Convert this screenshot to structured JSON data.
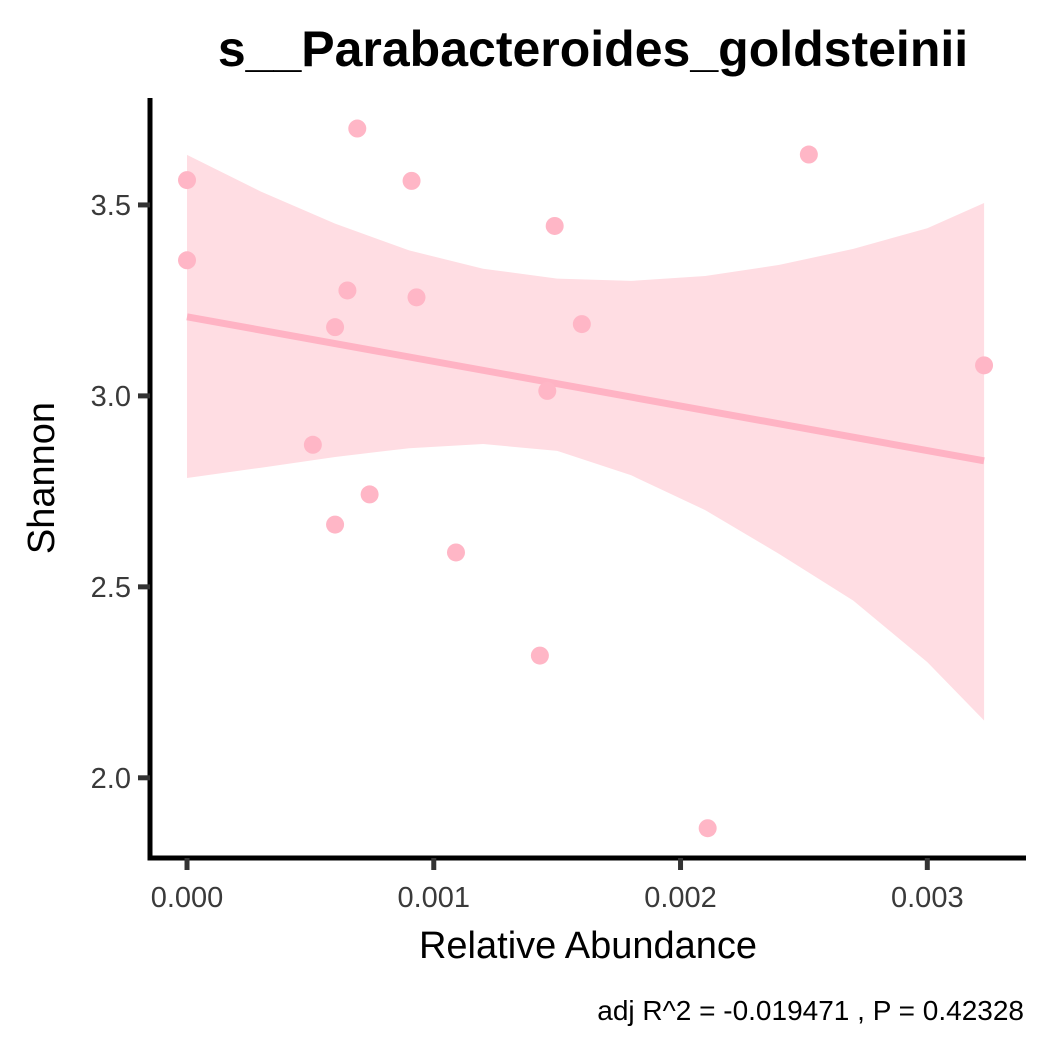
{
  "chart_data": {
    "type": "scatter",
    "title": "s__Parabacteroides_goldsteinii",
    "xlabel": "Relative Abundance",
    "ylabel": "Shannon",
    "xlim": [
      -0.00015,
      0.0034
    ],
    "ylim": [
      1.79,
      3.78
    ],
    "x_ticks": [
      0.0,
      0.001,
      0.002,
      0.003
    ],
    "x_tick_labels": [
      "0.000",
      "0.001",
      "0.002",
      "0.003"
    ],
    "y_ticks": [
      2.0,
      2.5,
      3.0,
      3.5
    ],
    "y_tick_labels": [
      "2.0",
      "2.5",
      "3.0",
      "3.5"
    ],
    "grid": false,
    "legend": "none",
    "point_color": "#ffb6c6",
    "band_color": "#ffdde3",
    "line_color": "#ffb3c4",
    "axis_color": "#000000",
    "points": [
      {
        "x": 0.0,
        "y": 3.565
      },
      {
        "x": 0.0,
        "y": 3.355
      },
      {
        "x": 0.00051,
        "y": 2.872
      },
      {
        "x": 0.0006,
        "y": 3.18
      },
      {
        "x": 0.0006,
        "y": 2.663
      },
      {
        "x": 0.00065,
        "y": 3.276
      },
      {
        "x": 0.00069,
        "y": 3.7
      },
      {
        "x": 0.00074,
        "y": 2.742
      },
      {
        "x": 0.00091,
        "y": 3.563
      },
      {
        "x": 0.00093,
        "y": 3.258
      },
      {
        "x": 0.00109,
        "y": 2.59
      },
      {
        "x": 0.00143,
        "y": 2.32
      },
      {
        "x": 0.00146,
        "y": 3.013
      },
      {
        "x": 0.00149,
        "y": 3.445
      },
      {
        "x": 0.0016,
        "y": 3.188
      },
      {
        "x": 0.00211,
        "y": 1.868
      },
      {
        "x": 0.00252,
        "y": 3.632
      },
      {
        "x": 0.00323,
        "y": 3.08
      }
    ],
    "fit_line": {
      "x": [
        0.0,
        0.00323
      ],
      "y": [
        3.207,
        2.83
      ]
    },
    "confidence_band": {
      "x": [
        0.0,
        0.0003,
        0.0006,
        0.0009,
        0.0012,
        0.0015,
        0.0018,
        0.0021,
        0.0024,
        0.0027,
        0.003,
        0.00323
      ],
      "upper": [
        3.631,
        3.535,
        3.451,
        3.381,
        3.333,
        3.307,
        3.301,
        3.314,
        3.343,
        3.385,
        3.439,
        3.505
      ],
      "lower": [
        2.785,
        2.812,
        2.84,
        2.863,
        2.874,
        2.856,
        2.792,
        2.701,
        2.586,
        2.464,
        2.303,
        2.15
      ]
    },
    "annotation": "adj R^2 =  -0.019471 , P = 0.42328"
  }
}
